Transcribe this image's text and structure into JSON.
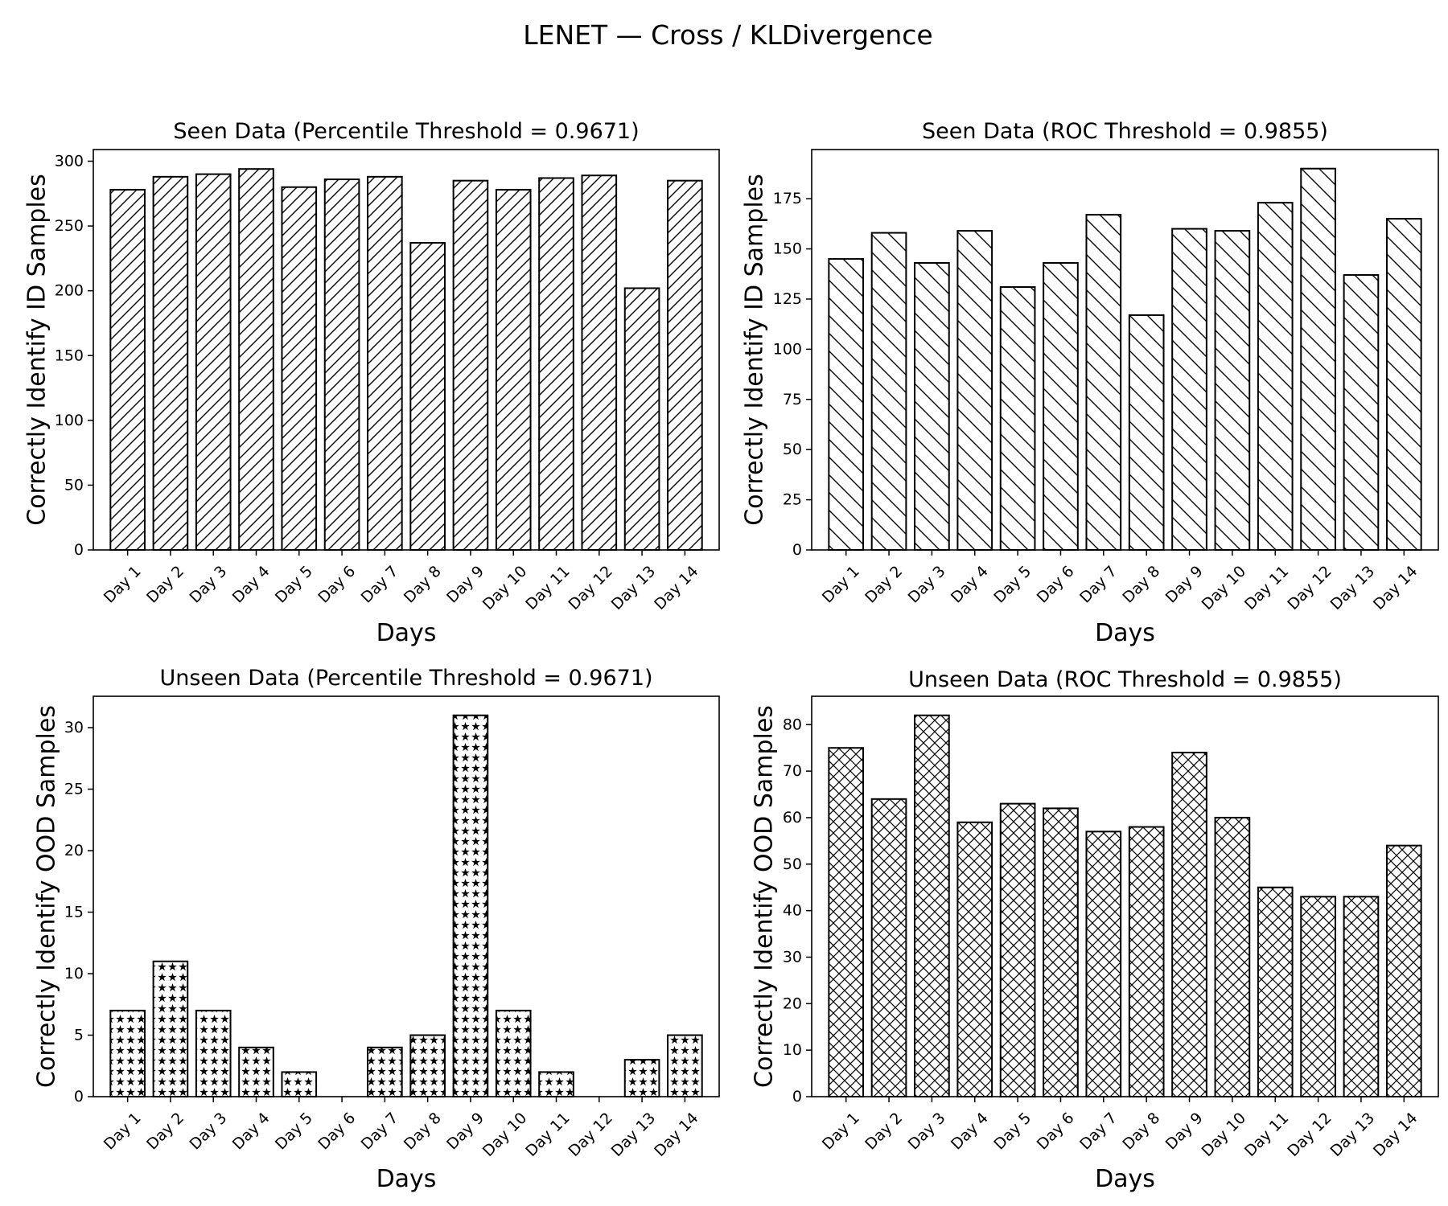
{
  "figure": {
    "title": "LENET — Cross / KLDivergence"
  },
  "chart_data": [
    {
      "type": "bar",
      "title": "Seen Data (Percentile Threshold = 0.9671)",
      "xlabel": "Days",
      "ylabel": "Correctly Identify ID Samples",
      "categories": [
        "Day 1",
        "Day 2",
        "Day 3",
        "Day 4",
        "Day 5",
        "Day 6",
        "Day 7",
        "Day 8",
        "Day 9",
        "Day 10",
        "Day 11",
        "Day 12",
        "Day 13",
        "Day 14"
      ],
      "values": [
        278,
        288,
        290,
        294,
        280,
        286,
        288,
        237,
        285,
        278,
        287,
        289,
        202,
        285
      ],
      "ylim": [
        0,
        309
      ],
      "yticks": [
        0,
        50,
        100,
        150,
        200,
        250,
        300
      ],
      "hatch": "forward-diagonal"
    },
    {
      "type": "bar",
      "title": "Seen Data (ROC Threshold = 0.9855)",
      "xlabel": "Days",
      "ylabel": "Correctly Identify ID Samples",
      "categories": [
        "Day 1",
        "Day 2",
        "Day 3",
        "Day 4",
        "Day 5",
        "Day 6",
        "Day 7",
        "Day 8",
        "Day 9",
        "Day 10",
        "Day 11",
        "Day 12",
        "Day 13",
        "Day 14"
      ],
      "values": [
        145,
        158,
        143,
        159,
        131,
        143,
        167,
        117,
        160,
        159,
        173,
        190,
        137,
        165
      ],
      "ylim": [
        0,
        199.5
      ],
      "yticks": [
        0,
        25,
        50,
        75,
        100,
        125,
        150,
        175
      ],
      "hatch": "back-diagonal"
    },
    {
      "type": "bar",
      "title": "Unseen Data (Percentile Threshold = 0.9671)",
      "xlabel": "Days",
      "ylabel": "Correctly Identify OOD Samples",
      "categories": [
        "Day 1",
        "Day 2",
        "Day 3",
        "Day 4",
        "Day 5",
        "Day 6",
        "Day 7",
        "Day 8",
        "Day 9",
        "Day 10",
        "Day 11",
        "Day 12",
        "Day 13",
        "Day 14"
      ],
      "values": [
        7,
        11,
        7,
        4,
        2,
        0,
        4,
        5,
        31,
        7,
        2,
        0,
        3,
        5
      ],
      "ylim": [
        0,
        32.55
      ],
      "yticks": [
        0,
        5,
        10,
        15,
        20,
        25,
        30
      ],
      "hatch": "stars"
    },
    {
      "type": "bar",
      "title": "Unseen Data (ROC Threshold = 0.9855)",
      "xlabel": "Days",
      "ylabel": "Correctly Identify OOD Samples",
      "categories": [
        "Day 1",
        "Day 2",
        "Day 3",
        "Day 4",
        "Day 5",
        "Day 6",
        "Day 7",
        "Day 8",
        "Day 9",
        "Day 10",
        "Day 11",
        "Day 12",
        "Day 13",
        "Day 14"
      ],
      "values": [
        75,
        64,
        82,
        59,
        63,
        62,
        57,
        58,
        74,
        60,
        45,
        43,
        43,
        54
      ],
      "ylim": [
        0,
        86.1
      ],
      "yticks": [
        0,
        10,
        20,
        30,
        40,
        50,
        60,
        70,
        80
      ],
      "hatch": "crosshatch"
    }
  ]
}
